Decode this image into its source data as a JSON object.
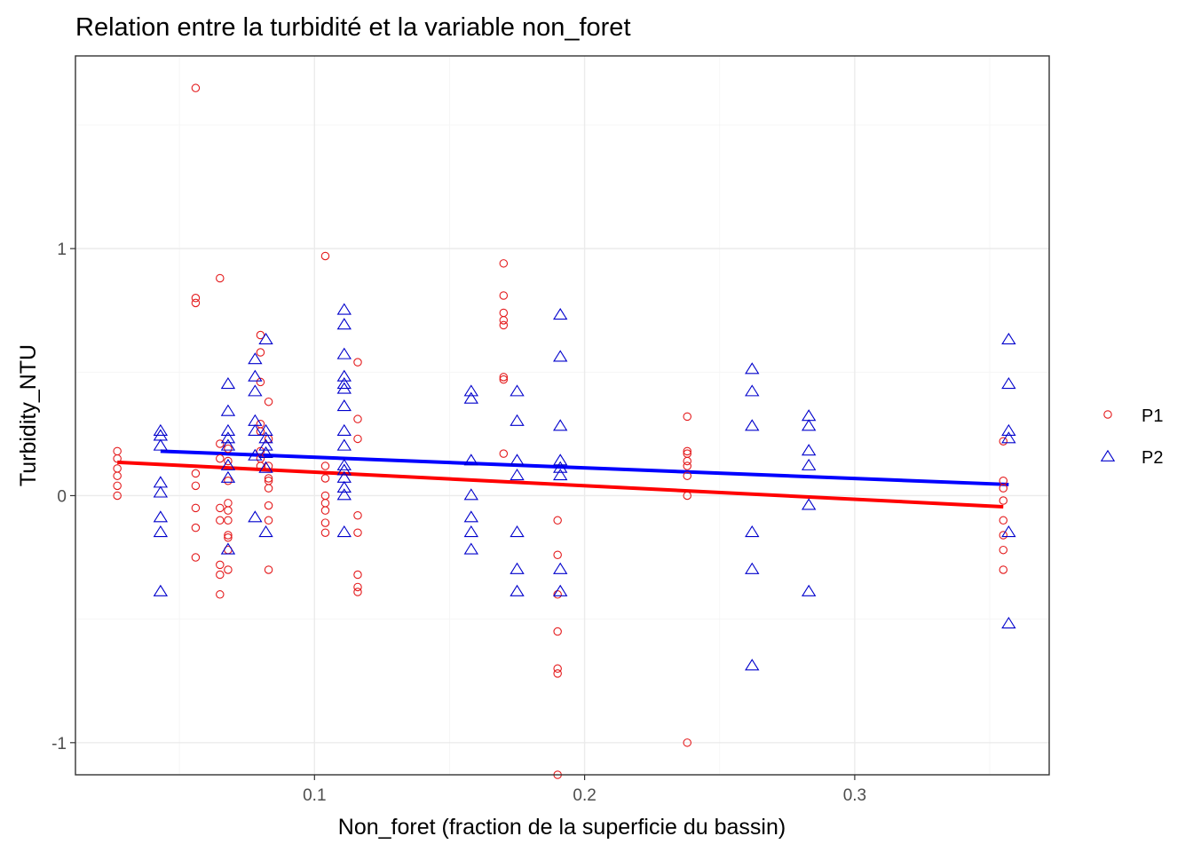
{
  "chart_data": {
    "type": "scatter",
    "title": "Relation entre la turbidité et la variable non_foret",
    "xlabel": "Non_foret (fraction de la superficie du bassin)",
    "ylabel": "Turbidity_NTU",
    "xlim": [
      0.0115,
      0.372
    ],
    "ylim": [
      -1.13,
      1.78
    ],
    "x_ticks": [
      0.1,
      0.2,
      0.3
    ],
    "x_tick_labels": [
      "0.1",
      "0.2",
      "0.3"
    ],
    "y_ticks": [
      -1,
      0,
      1
    ],
    "y_tick_labels": [
      "-1",
      "0",
      "1"
    ],
    "grid": true,
    "legend_position": "right",
    "series": [
      {
        "name": "P1",
        "marker": "circle",
        "color": "#e41a1c",
        "points": [
          [
            0.027,
            0.18
          ],
          [
            0.027,
            0.15
          ],
          [
            0.027,
            0.11
          ],
          [
            0.027,
            0.08
          ],
          [
            0.027,
            0.04
          ],
          [
            0.027,
            0.0
          ],
          [
            0.056,
            1.65
          ],
          [
            0.056,
            0.8
          ],
          [
            0.056,
            0.78
          ],
          [
            0.056,
            0.09
          ],
          [
            0.056,
            0.04
          ],
          [
            0.056,
            -0.05
          ],
          [
            0.056,
            -0.13
          ],
          [
            0.056,
            -0.25
          ],
          [
            0.065,
            0.88
          ],
          [
            0.065,
            0.21
          ],
          [
            0.065,
            0.15
          ],
          [
            0.065,
            -0.05
          ],
          [
            0.065,
            -0.1
          ],
          [
            0.065,
            -0.28
          ],
          [
            0.065,
            -0.32
          ],
          [
            0.065,
            -0.4
          ],
          [
            0.068,
            0.19
          ],
          [
            0.068,
            0.14
          ],
          [
            0.068,
            0.06
          ],
          [
            0.068,
            -0.03
          ],
          [
            0.068,
            -0.06
          ],
          [
            0.068,
            -0.1
          ],
          [
            0.068,
            -0.16
          ],
          [
            0.068,
            -0.17
          ],
          [
            0.068,
            -0.22
          ],
          [
            0.068,
            -0.3
          ],
          [
            0.08,
            0.65
          ],
          [
            0.08,
            0.58
          ],
          [
            0.08,
            0.46
          ],
          [
            0.08,
            0.29
          ],
          [
            0.08,
            0.26
          ],
          [
            0.08,
            0.18
          ],
          [
            0.08,
            0.15
          ],
          [
            0.08,
            0.12
          ],
          [
            0.083,
            0.38
          ],
          [
            0.083,
            0.23
          ],
          [
            0.083,
            0.12
          ],
          [
            0.083,
            0.07
          ],
          [
            0.083,
            0.06
          ],
          [
            0.083,
            0.03
          ],
          [
            0.083,
            -0.04
          ],
          [
            0.083,
            -0.1
          ],
          [
            0.083,
            -0.3
          ],
          [
            0.104,
            0.97
          ],
          [
            0.104,
            0.12
          ],
          [
            0.104,
            0.07
          ],
          [
            0.104,
            0.0
          ],
          [
            0.104,
            -0.03
          ],
          [
            0.104,
            -0.06
          ],
          [
            0.104,
            -0.11
          ],
          [
            0.104,
            -0.15
          ],
          [
            0.116,
            0.54
          ],
          [
            0.116,
            0.31
          ],
          [
            0.116,
            0.23
          ],
          [
            0.116,
            -0.08
          ],
          [
            0.116,
            -0.15
          ],
          [
            0.116,
            -0.32
          ],
          [
            0.116,
            -0.37
          ],
          [
            0.116,
            -0.39
          ],
          [
            0.17,
            0.94
          ],
          [
            0.17,
            0.81
          ],
          [
            0.17,
            0.74
          ],
          [
            0.17,
            0.71
          ],
          [
            0.17,
            0.69
          ],
          [
            0.17,
            0.48
          ],
          [
            0.17,
            0.47
          ],
          [
            0.17,
            0.17
          ],
          [
            0.19,
            -0.1
          ],
          [
            0.19,
            -0.24
          ],
          [
            0.19,
            -0.4
          ],
          [
            0.19,
            -0.55
          ],
          [
            0.19,
            -0.7
          ],
          [
            0.19,
            -0.72
          ],
          [
            0.19,
            -1.13
          ],
          [
            0.238,
            0.32
          ],
          [
            0.238,
            0.18
          ],
          [
            0.238,
            0.17
          ],
          [
            0.238,
            0.14
          ],
          [
            0.238,
            0.12
          ],
          [
            0.238,
            0.08
          ],
          [
            0.238,
            0.0
          ],
          [
            0.238,
            -1.0
          ],
          [
            0.355,
            0.22
          ],
          [
            0.355,
            0.06
          ],
          [
            0.355,
            0.03
          ],
          [
            0.355,
            -0.02
          ],
          [
            0.355,
            -0.1
          ],
          [
            0.355,
            -0.16
          ],
          [
            0.355,
            -0.22
          ],
          [
            0.355,
            -0.3
          ]
        ],
        "fit": [
          [
            0.027,
            0.135
          ],
          [
            0.355,
            -0.045
          ]
        ]
      },
      {
        "name": "P2",
        "marker": "triangle",
        "color": "#0000cc",
        "points": [
          [
            0.043,
            0.26
          ],
          [
            0.043,
            0.24
          ],
          [
            0.043,
            0.2
          ],
          [
            0.043,
            0.05
          ],
          [
            0.043,
            0.01
          ],
          [
            0.043,
            -0.09
          ],
          [
            0.043,
            -0.15
          ],
          [
            0.043,
            -0.39
          ],
          [
            0.068,
            0.45
          ],
          [
            0.068,
            0.34
          ],
          [
            0.068,
            0.26
          ],
          [
            0.068,
            0.23
          ],
          [
            0.068,
            0.2
          ],
          [
            0.068,
            0.12
          ],
          [
            0.068,
            0.07
          ],
          [
            0.068,
            -0.22
          ],
          [
            0.078,
            0.55
          ],
          [
            0.078,
            0.48
          ],
          [
            0.078,
            0.42
          ],
          [
            0.078,
            0.3
          ],
          [
            0.078,
            0.26
          ],
          [
            0.078,
            0.16
          ],
          [
            0.078,
            -0.09
          ],
          [
            0.082,
            0.63
          ],
          [
            0.082,
            0.26
          ],
          [
            0.082,
            0.23
          ],
          [
            0.082,
            0.2
          ],
          [
            0.082,
            0.17
          ],
          [
            0.082,
            0.11
          ],
          [
            0.082,
            -0.15
          ],
          [
            0.111,
            0.75
          ],
          [
            0.111,
            0.69
          ],
          [
            0.111,
            0.57
          ],
          [
            0.111,
            0.48
          ],
          [
            0.111,
            0.45
          ],
          [
            0.111,
            0.43
          ],
          [
            0.111,
            0.36
          ],
          [
            0.111,
            0.26
          ],
          [
            0.111,
            0.2
          ],
          [
            0.111,
            0.12
          ],
          [
            0.111,
            0.1
          ],
          [
            0.111,
            0.07
          ],
          [
            0.111,
            0.03
          ],
          [
            0.111,
            0.0
          ],
          [
            0.111,
            -0.15
          ],
          [
            0.158,
            0.42
          ],
          [
            0.158,
            0.39
          ],
          [
            0.158,
            0.14
          ],
          [
            0.158,
            0.0
          ],
          [
            0.158,
            -0.09
          ],
          [
            0.158,
            -0.15
          ],
          [
            0.158,
            -0.22
          ],
          [
            0.175,
            0.42
          ],
          [
            0.175,
            0.3
          ],
          [
            0.175,
            0.14
          ],
          [
            0.175,
            0.08
          ],
          [
            0.175,
            -0.15
          ],
          [
            0.175,
            -0.3
          ],
          [
            0.175,
            -0.39
          ],
          [
            0.191,
            0.73
          ],
          [
            0.191,
            0.56
          ],
          [
            0.191,
            0.28
          ],
          [
            0.191,
            0.14
          ],
          [
            0.191,
            0.11
          ],
          [
            0.191,
            0.08
          ],
          [
            0.191,
            -0.3
          ],
          [
            0.191,
            -0.39
          ],
          [
            0.262,
            0.51
          ],
          [
            0.262,
            0.42
          ],
          [
            0.262,
            0.28
          ],
          [
            0.262,
            -0.15
          ],
          [
            0.262,
            -0.3
          ],
          [
            0.262,
            -0.69
          ],
          [
            0.283,
            0.32
          ],
          [
            0.283,
            0.28
          ],
          [
            0.283,
            0.18
          ],
          [
            0.283,
            0.12
          ],
          [
            0.283,
            -0.04
          ],
          [
            0.283,
            -0.39
          ],
          [
            0.357,
            0.63
          ],
          [
            0.357,
            0.45
          ],
          [
            0.357,
            0.26
          ],
          [
            0.357,
            0.23
          ],
          [
            0.357,
            -0.15
          ],
          [
            0.357,
            -0.52
          ]
        ],
        "fit": [
          [
            0.043,
            0.18
          ],
          [
            0.357,
            0.045
          ]
        ]
      }
    ]
  }
}
